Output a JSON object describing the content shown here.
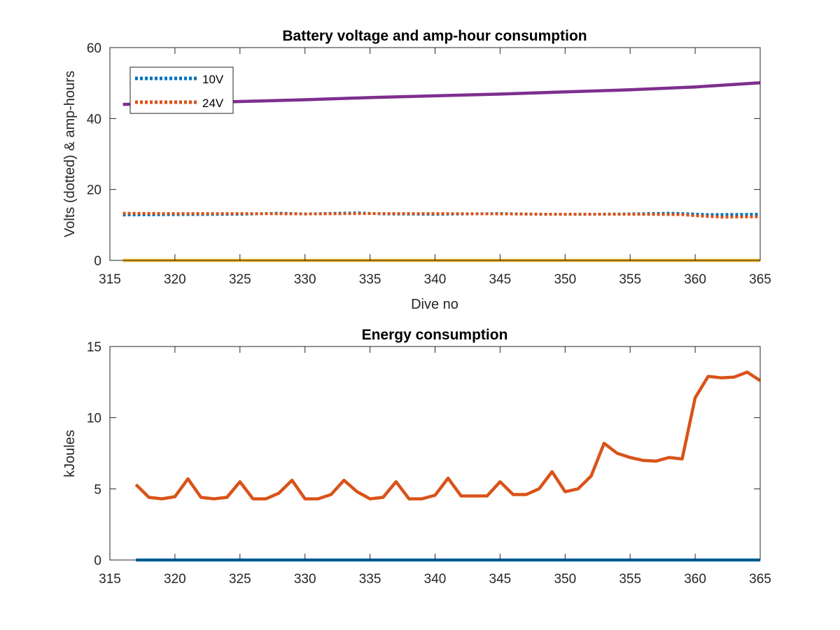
{
  "chart_data": [
    {
      "type": "line",
      "title": "Battery voltage and amp-hour consumption",
      "xlabel": "Dive no",
      "ylabel": "Volts (dotted) & amp-hours",
      "xlim": [
        315,
        365
      ],
      "ylim": [
        0,
        60
      ],
      "xticks": [
        315,
        320,
        325,
        330,
        335,
        340,
        345,
        350,
        355,
        360,
        365
      ],
      "yticks": [
        0,
        20,
        40,
        60
      ],
      "grid": false,
      "legend": "top-left",
      "series": [
        {
          "name": "10V",
          "style": "dotted",
          "color": "#0072BD",
          "x": [
            316,
            320,
            325,
            328,
            330,
            334,
            336,
            340,
            345,
            348,
            352,
            355,
            358,
            359,
            361,
            365
          ],
          "y": [
            12.8,
            12.9,
            13.0,
            13.3,
            13.1,
            13.4,
            13.1,
            13.0,
            13.2,
            13.0,
            13.0,
            13.1,
            13.3,
            13.2,
            12.9,
            13.0
          ]
        },
        {
          "name": "24V",
          "style": "dotted",
          "color": "#D95319",
          "x": [
            316,
            320,
            325,
            330,
            335,
            340,
            345,
            350,
            355,
            359,
            360,
            362,
            365
          ],
          "y": [
            13.3,
            13.2,
            13.2,
            13.1,
            13.2,
            13.2,
            13.1,
            13.0,
            13.0,
            12.9,
            12.6,
            12.2,
            12.3
          ]
        },
        {
          "style": "solid",
          "color": "#7E2F8E",
          "x": [
            316,
            320,
            325,
            330,
            335,
            340,
            345,
            350,
            355,
            360,
            365
          ],
          "y": [
            44.0,
            44.3,
            44.8,
            45.3,
            45.9,
            46.4,
            46.9,
            47.5,
            48.1,
            48.9,
            50.1
          ]
        },
        {
          "style": "solid",
          "color": "#EDB120",
          "x": [
            316,
            365
          ],
          "y": [
            0,
            0
          ]
        }
      ]
    },
    {
      "type": "line",
      "title": "Energy consumption",
      "xlabel": "",
      "ylabel": "kJoules",
      "xlim": [
        315,
        365
      ],
      "ylim": [
        0,
        15
      ],
      "xticks": [
        315,
        320,
        325,
        330,
        335,
        340,
        345,
        350,
        355,
        360,
        365
      ],
      "yticks": [
        0,
        5,
        10,
        15
      ],
      "grid": false,
      "series": [
        {
          "style": "solid",
          "color": "#D95319",
          "x": [
            317,
            318,
            319,
            320,
            321,
            322,
            323,
            324,
            325,
            326,
            327,
            328,
            329,
            330,
            331,
            332,
            333,
            334,
            335,
            336,
            337,
            338,
            339,
            340,
            341,
            342,
            343,
            344,
            345,
            346,
            347,
            348,
            349,
            350,
            351,
            352,
            353,
            354,
            355,
            356,
            357,
            358,
            359,
            360,
            361,
            362,
            363,
            364,
            365
          ],
          "y": [
            5.3,
            4.4,
            4.3,
            4.45,
            5.7,
            4.4,
            4.3,
            4.4,
            5.5,
            4.3,
            4.3,
            4.7,
            5.6,
            4.3,
            4.3,
            4.6,
            5.6,
            4.8,
            4.3,
            4.4,
            5.5,
            4.3,
            4.3,
            4.55,
            5.75,
            4.5,
            4.5,
            4.5,
            5.5,
            4.6,
            4.6,
            5.0,
            6.2,
            4.8,
            5.0,
            5.9,
            8.2,
            7.5,
            7.2,
            7.0,
            6.95,
            7.2,
            7.1,
            11.4,
            12.9,
            12.8,
            12.85,
            13.2,
            12.6
          ]
        },
        {
          "style": "solid",
          "color": "#0072BD",
          "x": [
            317,
            365
          ],
          "y": [
            0,
            0
          ]
        }
      ]
    }
  ]
}
